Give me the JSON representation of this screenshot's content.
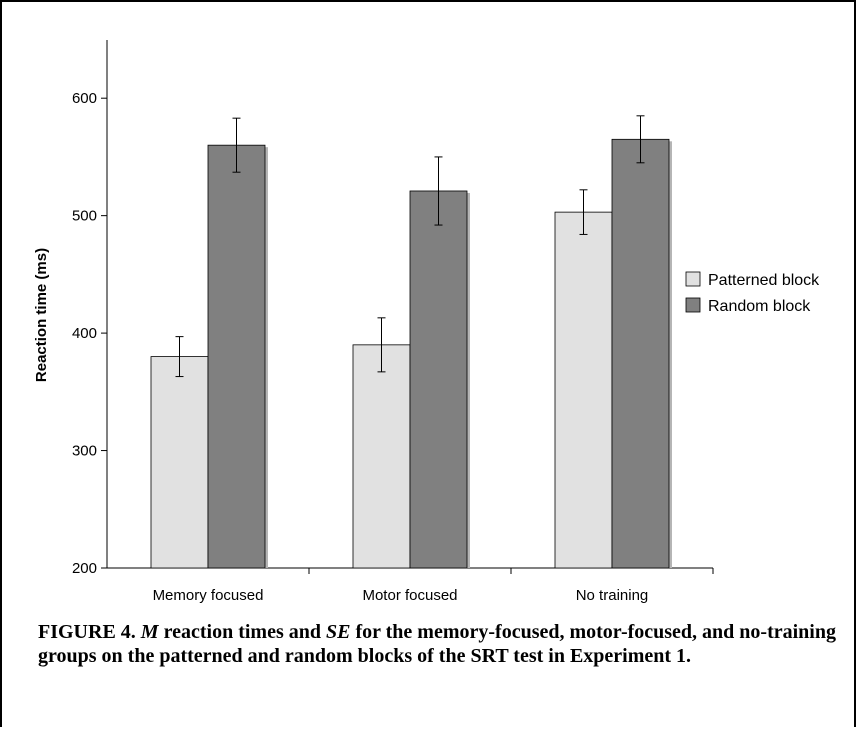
{
  "chart_data": {
    "type": "bar",
    "ylabel": "Reaction time (ms)",
    "ylim": [
      200,
      650
    ],
    "yticks": [
      200,
      300,
      400,
      500,
      600
    ],
    "categories": [
      "Memory focused",
      "Motor focused",
      "No training"
    ],
    "series": [
      {
        "name": "Patterned block",
        "color": "#e1e1e1",
        "values": [
          380,
          390,
          503
        ],
        "se": [
          17,
          23,
          19
        ]
      },
      {
        "name": "Random block",
        "color": "#808080",
        "values": [
          560,
          521,
          565
        ],
        "se": [
          23,
          29,
          20
        ]
      }
    ],
    "legend_position": "right",
    "grid": false
  },
  "caption": {
    "label": "FIGURE 4.",
    "m": "M",
    "text1": " reaction times and ",
    "se": "SE",
    "text2": " for the memory-focused, motor-focused, and no-training groups on the patterned and random blocks of the SRT test in Experiment 1."
  }
}
